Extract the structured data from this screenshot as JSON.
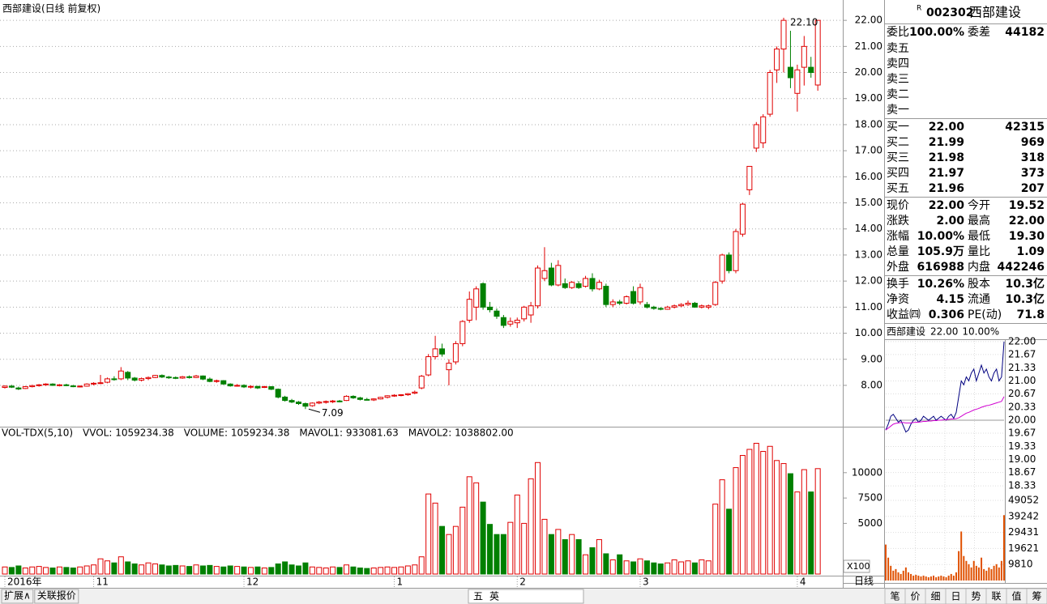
{
  "chart_data": {
    "type": "candlestick",
    "title": "西部建设(日线 前复权)",
    "categories": [
      "2016年",
      null,
      null,
      null,
      null,
      null,
      null,
      null,
      null,
      null,
      null,
      null,
      null,
      "11",
      null,
      null,
      null,
      null,
      null,
      null,
      null,
      null,
      null,
      null,
      null,
      null,
      null,
      null,
      null,
      null,
      null,
      null,
      null,
      null,
      null,
      "12",
      null,
      null,
      null,
      null,
      null,
      null,
      null,
      null,
      null,
      null,
      null,
      null,
      null,
      null,
      null,
      null,
      null,
      null,
      null,
      null,
      null,
      "1",
      null,
      null,
      null,
      null,
      null,
      null,
      null,
      null,
      null,
      null,
      null,
      null,
      null,
      null,
      null,
      null,
      null,
      "2",
      null,
      null,
      null,
      null,
      null,
      null,
      null,
      null,
      null,
      null,
      null,
      null,
      null,
      null,
      null,
      null,
      null,
      "3",
      null,
      null,
      null,
      null,
      null,
      null,
      null,
      null,
      null,
      null,
      null,
      null,
      null,
      null,
      null,
      null,
      null,
      null,
      null,
      null,
      null,
      null,
      "4",
      null,
      null,
      null
    ],
    "candles": [
      [
        7.92,
        8.0,
        7.88,
        7.97
      ],
      [
        7.97,
        8.02,
        7.9,
        7.93
      ],
      [
        7.9,
        7.95,
        7.82,
        7.86
      ],
      [
        7.88,
        7.98,
        7.86,
        7.95
      ],
      [
        7.95,
        8.02,
        7.92,
        7.99
      ],
      [
        7.99,
        8.05,
        7.95,
        8.02
      ],
      [
        8.02,
        8.08,
        7.98,
        8.05
      ],
      [
        8.05,
        8.08,
        7.98,
        8.0
      ],
      [
        8.0,
        8.05,
        7.96,
        8.02
      ],
      [
        8.02,
        8.06,
        7.97,
        7.99
      ],
      [
        7.98,
        8.02,
        7.93,
        7.96
      ],
      [
        7.96,
        8.0,
        7.92,
        7.97
      ],
      [
        7.97,
        8.08,
        7.95,
        8.05
      ],
      [
        8.05,
        8.12,
        8.0,
        8.08
      ],
      [
        8.08,
        8.4,
        8.05,
        8.1
      ],
      [
        8.12,
        8.3,
        8.08,
        8.25
      ],
      [
        8.25,
        8.35,
        8.18,
        8.22
      ],
      [
        8.25,
        8.7,
        8.2,
        8.55
      ],
      [
        8.5,
        8.55,
        8.2,
        8.28
      ],
      [
        8.28,
        8.32,
        8.15,
        8.2
      ],
      [
        8.2,
        8.3,
        8.15,
        8.26
      ],
      [
        8.26,
        8.34,
        8.2,
        8.3
      ],
      [
        8.3,
        8.4,
        8.28,
        8.38
      ],
      [
        8.38,
        8.42,
        8.28,
        8.32
      ],
      [
        8.32,
        8.36,
        8.25,
        8.3
      ],
      [
        8.3,
        8.34,
        8.24,
        8.28
      ],
      [
        8.28,
        8.36,
        8.25,
        8.33
      ],
      [
        8.33,
        8.38,
        8.26,
        8.3
      ],
      [
        8.3,
        8.4,
        8.28,
        8.36
      ],
      [
        8.36,
        8.38,
        8.2,
        8.24
      ],
      [
        8.24,
        8.3,
        8.12,
        8.15
      ],
      [
        8.15,
        8.22,
        8.1,
        8.18
      ],
      [
        8.18,
        8.2,
        8.02,
        8.05
      ],
      [
        8.05,
        8.08,
        7.95,
        7.98
      ],
      [
        7.98,
        8.05,
        7.95,
        8.0
      ],
      [
        8.0,
        8.04,
        7.9,
        7.94
      ],
      [
        7.94,
        8.0,
        7.88,
        7.96
      ],
      [
        7.96,
        7.98,
        7.86,
        7.9
      ],
      [
        7.92,
        7.98,
        7.9,
        7.95
      ],
      [
        7.95,
        7.97,
        7.82,
        7.85
      ],
      [
        7.85,
        7.88,
        7.5,
        7.55
      ],
      [
        7.55,
        7.6,
        7.38,
        7.42
      ],
      [
        7.42,
        7.48,
        7.32,
        7.36
      ],
      [
        7.36,
        7.4,
        7.25,
        7.3
      ],
      [
        7.3,
        7.34,
        7.09,
        7.2
      ],
      [
        7.22,
        7.35,
        7.18,
        7.32
      ],
      [
        7.32,
        7.4,
        7.28,
        7.36
      ],
      [
        7.36,
        7.42,
        7.3,
        7.38
      ],
      [
        7.38,
        7.44,
        7.32,
        7.4
      ],
      [
        7.4,
        7.44,
        7.35,
        7.38
      ],
      [
        7.42,
        7.62,
        7.4,
        7.58
      ],
      [
        7.58,
        7.62,
        7.48,
        7.52
      ],
      [
        7.52,
        7.56,
        7.42,
        7.46
      ],
      [
        7.46,
        7.52,
        7.42,
        7.44
      ],
      [
        7.44,
        7.5,
        7.4,
        7.48
      ],
      [
        7.48,
        7.56,
        7.46,
        7.54
      ],
      [
        7.54,
        7.62,
        7.5,
        7.6
      ],
      [
        7.6,
        7.66,
        7.56,
        7.62
      ],
      [
        7.62,
        7.66,
        7.58,
        7.64
      ],
      [
        7.64,
        7.7,
        7.6,
        7.68
      ],
      [
        7.7,
        7.8,
        7.66,
        7.74
      ],
      [
        7.9,
        8.4,
        7.85,
        8.35
      ],
      [
        8.4,
        9.2,
        8.35,
        9.1
      ],
      [
        9.1,
        9.9,
        9.0,
        9.4
      ],
      [
        9.4,
        9.6,
        9.1,
        9.2
      ],
      [
        8.6,
        9.0,
        8.0,
        8.85
      ],
      [
        8.9,
        9.7,
        8.8,
        9.6
      ],
      [
        9.6,
        10.5,
        9.5,
        10.45
      ],
      [
        10.5,
        11.6,
        10.4,
        11.3
      ],
      [
        11.0,
        11.8,
        10.5,
        11.7
      ],
      [
        11.9,
        11.95,
        10.9,
        11.0
      ],
      [
        11.0,
        11.2,
        10.8,
        10.9
      ],
      [
        10.85,
        10.95,
        10.55,
        10.65
      ],
      [
        10.6,
        10.7,
        10.2,
        10.3
      ],
      [
        10.35,
        10.6,
        10.25,
        10.45
      ],
      [
        10.4,
        10.6,
        10.2,
        10.5
      ],
      [
        10.55,
        11.05,
        10.45,
        11.0
      ],
      [
        10.7,
        11.2,
        10.4,
        11.05
      ],
      [
        11.05,
        12.6,
        10.95,
        12.5
      ],
      [
        12.1,
        13.3,
        12.0,
        12.4
      ],
      [
        12.5,
        12.7,
        11.8,
        11.85
      ],
      [
        11.85,
        12.8,
        11.8,
        12.6
      ],
      [
        11.9,
        12.1,
        11.7,
        11.75
      ],
      [
        11.75,
        12.0,
        11.7,
        11.95
      ],
      [
        11.9,
        12.0,
        11.7,
        11.75
      ],
      [
        11.8,
        12.2,
        11.75,
        12.1
      ],
      [
        12.1,
        12.3,
        11.6,
        11.7
      ],
      [
        11.7,
        12.05,
        11.65,
        11.95
      ],
      [
        11.8,
        11.9,
        11.0,
        11.1
      ],
      [
        11.1,
        11.3,
        11.0,
        11.2
      ],
      [
        11.2,
        11.28,
        11.08,
        11.15
      ],
      [
        11.15,
        11.45,
        11.1,
        11.4
      ],
      [
        11.6,
        11.8,
        11.1,
        11.15
      ],
      [
        11.2,
        11.9,
        11.1,
        11.75
      ],
      [
        11.1,
        11.2,
        10.95,
        11.0
      ],
      [
        11.0,
        11.05,
        10.9,
        10.95
      ],
      [
        10.95,
        11.0,
        10.88,
        10.92
      ],
      [
        10.92,
        11.05,
        10.9,
        11.0
      ],
      [
        11.0,
        11.1,
        10.95,
        11.05
      ],
      [
        11.05,
        11.15,
        11.0,
        11.1
      ],
      [
        11.1,
        11.25,
        11.05,
        11.15
      ],
      [
        11.15,
        11.2,
        10.98,
        11.0
      ],
      [
        11.0,
        11.1,
        10.95,
        11.05
      ],
      [
        11.0,
        11.1,
        10.92,
        11.05
      ],
      [
        11.1,
        12.0,
        11.05,
        11.95
      ],
      [
        12.0,
        13.05,
        11.9,
        13.0
      ],
      [
        13.0,
        13.1,
        12.3,
        12.4
      ],
      [
        12.4,
        14.0,
        12.3,
        13.9
      ],
      [
        13.8,
        15.0,
        13.7,
        14.95
      ],
      [
        15.5,
        16.4,
        15.3,
        16.4
      ],
      [
        17.1,
        18.1,
        16.95,
        18.0
      ],
      [
        17.3,
        18.4,
        17.1,
        18.3
      ],
      [
        18.4,
        20.1,
        18.3,
        20.0
      ],
      [
        20.1,
        21.0,
        19.6,
        20.9
      ],
      [
        20.9,
        22.1,
        20.0,
        22.0
      ],
      [
        20.2,
        21.6,
        19.4,
        19.8
      ],
      [
        19.2,
        20.3,
        18.5,
        20.1
      ],
      [
        20.2,
        21.4,
        19.5,
        21.0
      ],
      [
        20.2,
        20.6,
        19.8,
        20.0
      ],
      [
        19.52,
        22.0,
        19.3,
        22.0
      ]
    ],
    "ylim": [
      6.57,
      22.47
    ],
    "yticks": [
      {
        "value": 22,
        "label": "22.00"
      },
      {
        "value": 21,
        "label": "21.00"
      },
      {
        "value": 20,
        "label": "20.00"
      },
      {
        "value": 19,
        "label": "19.00"
      },
      {
        "value": 18,
        "label": "18.00"
      },
      {
        "value": 17,
        "label": "17.00"
      },
      {
        "value": 16,
        "label": "16.00"
      },
      {
        "value": 15,
        "label": "15.00"
      },
      {
        "value": 14,
        "label": "14.00"
      },
      {
        "value": 13,
        "label": "13.00"
      },
      {
        "value": 12,
        "label": "12.00"
      },
      {
        "value": 11,
        "label": "11.00"
      },
      {
        "value": 10,
        "label": "10.00"
      },
      {
        "value": 9,
        "label": "9.00"
      },
      {
        "value": 8,
        "label": "8.00"
      }
    ],
    "grid": true,
    "up_color": "#e00000",
    "down_color": "#008000",
    "annotations": [
      {
        "label": "22.10",
        "value": 22.1
      },
      {
        "label": "7.09",
        "value": 7.09
      }
    ],
    "volume": {
      "legend": [
        "VOL-TDX(5,10)",
        "VVOL: 1059234.38",
        "VOLUME: 1059234.38",
        "MAVOL1: 933081.63",
        "MAVOL2: 1038802.00"
      ],
      "unit_label": "X100",
      "values": [
        700,
        650,
        800,
        600,
        700,
        750,
        650,
        600,
        700,
        650,
        600,
        700,
        800,
        900,
        1500,
        1300,
        1100,
        1700,
        1200,
        1000,
        900,
        1100,
        1000,
        900,
        800,
        850,
        800,
        750,
        900,
        800,
        850,
        750,
        700,
        800,
        750,
        700,
        650,
        700,
        600,
        650,
        1000,
        1200,
        900,
        800,
        1100,
        700,
        650,
        600,
        700,
        650,
        900,
        700,
        600,
        550,
        600,
        650,
        700,
        650,
        700,
        800,
        900,
        1700,
        7900,
        7000,
        4700,
        3900,
        4700,
        6600,
        9600,
        9000,
        7100,
        4900,
        3900,
        3900,
        5100,
        7800,
        5000,
        9400,
        11000,
        5400,
        3900,
        4400,
        3400,
        3900,
        3400,
        1900,
        2600,
        3400,
        2000,
        1400,
        1900,
        1300,
        1200,
        1500,
        1300,
        1100,
        1000,
        1100,
        1400,
        1200,
        1300,
        1100,
        1400,
        1300,
        6900,
        9300,
        6400,
        10500,
        11700,
        12300,
        12900,
        12100,
        12600,
        11200,
        10900,
        9900,
        8100,
        10300,
        8100,
        10400
      ],
      "ylim": [
        0,
        13500
      ],
      "yticks": [
        10000,
        7500,
        5000
      ]
    },
    "period": "日线",
    "intraday": {
      "title": "西部建设",
      "price": "22.00",
      "change": "10.00%",
      "series": [
        {
          "name": "price",
          "color": "#000080",
          "values": [
            19.75,
            19.9,
            20.1,
            20.15,
            20.05,
            19.95,
            20.0,
            19.85,
            19.7,
            19.75,
            19.9,
            20.0,
            20.05,
            19.95,
            20.0,
            20.1,
            20.05,
            20.0,
            20.05,
            20.1,
            20.0,
            20.05,
            20.1,
            20.05,
            20.0,
            20.1,
            20.15,
            20.05,
            20.2,
            20.6,
            21.0,
            20.9,
            21.1,
            21.0,
            21.2,
            21.3,
            21.0,
            21.2,
            21.4,
            21.2,
            21.3,
            21.1,
            21.0,
            21.2,
            21.3,
            21.0,
            21.1,
            22.0
          ]
        },
        {
          "name": "average",
          "color": "#d000d0",
          "values": [
            19.75,
            19.8,
            19.85,
            19.9,
            19.92,
            19.93,
            19.94,
            19.94,
            19.93,
            19.93,
            19.93,
            19.94,
            19.95,
            19.95,
            19.96,
            19.97,
            19.97,
            19.98,
            19.98,
            19.99,
            19.99,
            20.0,
            20.0,
            20.01,
            20.01,
            20.02,
            20.03,
            20.03,
            20.04,
            20.06,
            20.1,
            20.14,
            20.18,
            20.2,
            20.23,
            20.26,
            20.28,
            20.3,
            20.33,
            20.35,
            20.37,
            20.38,
            20.4,
            20.42,
            20.44,
            20.46,
            20.48,
            20.6
          ]
        }
      ],
      "ylim": [
        18.25,
        22.08
      ],
      "yticks": [
        {
          "value": 22,
          "label": "22.00"
        },
        {
          "value": 21.67,
          "label": "21.67"
        },
        {
          "value": 21.33,
          "label": "21.33"
        },
        {
          "value": 21,
          "label": "21.00"
        },
        {
          "value": 20.67,
          "label": "20.67"
        },
        {
          "value": 20.33,
          "label": "20.33"
        },
        {
          "value": 20,
          "label": "20.00"
        },
        {
          "value": 19.67,
          "label": "19.67"
        },
        {
          "value": 19.33,
          "label": "19.33"
        },
        {
          "value": 19,
          "label": "19.00"
        },
        {
          "value": 18.67,
          "label": "18.67"
        },
        {
          "value": 18.33,
          "label": "18.33"
        }
      ],
      "volume": [
        22000,
        14000,
        9000,
        6000,
        7000,
        5000,
        4000,
        6000,
        8000,
        5000,
        4000,
        3000,
        3500,
        3000,
        2500,
        3000,
        2500,
        2000,
        2500,
        3000,
        2000,
        2500,
        3000,
        2500,
        2000,
        3000,
        4000,
        3000,
        5000,
        18000,
        30000,
        15000,
        12000,
        10000,
        8000,
        12000,
        9000,
        8000,
        14000,
        7000,
        6000,
        8000,
        7000,
        9000,
        10000,
        8000,
        12000,
        40000
      ],
      "volume_color": "#e05000",
      "volume_ylim": [
        0,
        55000
      ],
      "volume_ticks": [
        49052,
        39242,
        29431,
        19621,
        9810
      ]
    }
  },
  "quote": {
    "mark": "R",
    "code": "002302",
    "name": "西部建设",
    "ratio": [
      "委比",
      "100.00%",
      "委差",
      "44182"
    ],
    "asks": [
      "卖五",
      "卖四",
      "卖三",
      "卖二",
      "卖一"
    ],
    "bids": [
      [
        "买一",
        "22.00",
        "42315"
      ],
      [
        "买二",
        "21.99",
        "969"
      ],
      [
        "买三",
        "21.98",
        "318"
      ],
      [
        "买四",
        "21.97",
        "373"
      ],
      [
        "买五",
        "21.96",
        "207"
      ]
    ],
    "stats": [
      [
        "现价",
        "22.00",
        "今开",
        "19.52"
      ],
      [
        "涨跌",
        "2.00",
        "最高",
        "22.00"
      ],
      [
        "涨幅",
        "10.00%",
        "最低",
        "19.30"
      ],
      [
        "总量",
        "105.9万",
        "量比",
        "1.09"
      ],
      [
        "外盘",
        "616988",
        "内盘",
        "442246"
      ]
    ],
    "finance": [
      [
        "换手",
        "10.26%",
        "股本",
        "10.3亿"
      ],
      [
        "净资",
        "4.15",
        "流通",
        "10.3亿"
      ],
      [
        "收益㈣",
        "0.306",
        "PE(动)",
        "71.8"
      ]
    ]
  },
  "footer": {
    "tabs": [
      "扩展∧",
      "关联报价"
    ],
    "ime": [
      "五",
      "英"
    ],
    "buttons": [
      "笔",
      "价",
      "细",
      "日",
      "势",
      "联",
      "值",
      "筹"
    ]
  }
}
